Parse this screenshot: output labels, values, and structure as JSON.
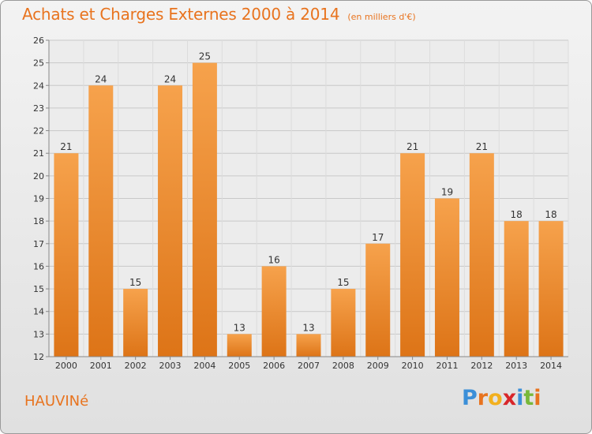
{
  "header": {
    "title": "Achats et Charges Externes 2000 à 2014",
    "subtitle": "(en milliers d'€)"
  },
  "footer": {
    "commune": "HAUVINé",
    "logo_letters": [
      "P",
      "r",
      "o",
      "x",
      "i",
      "t",
      "i"
    ],
    "logo_colors": [
      "#3b8fd8",
      "#e8731e",
      "#f2b01e",
      "#d8262a",
      "#3b8fd8",
      "#78b83a",
      "#e8731e"
    ]
  },
  "colors": {
    "bar_top": "#f6a24c",
    "bar_bottom": "#dd7417",
    "accent": "#e8731e",
    "grid": "#c8c8c8",
    "axis_text": "#333333"
  },
  "chart_data": {
    "type": "bar",
    "categories": [
      "2000",
      "2001",
      "2002",
      "2003",
      "2004",
      "2005",
      "2006",
      "2007",
      "2008",
      "2009",
      "2010",
      "2011",
      "2012",
      "2013",
      "2014"
    ],
    "values": [
      21,
      24,
      15,
      24,
      25,
      13,
      16,
      13,
      15,
      17,
      21,
      19,
      21,
      18,
      18
    ],
    "ylim": [
      12,
      26
    ],
    "yticks": [
      12,
      13,
      14,
      15,
      16,
      17,
      18,
      19,
      20,
      21,
      22,
      23,
      24,
      25,
      26
    ],
    "grid": true
  }
}
